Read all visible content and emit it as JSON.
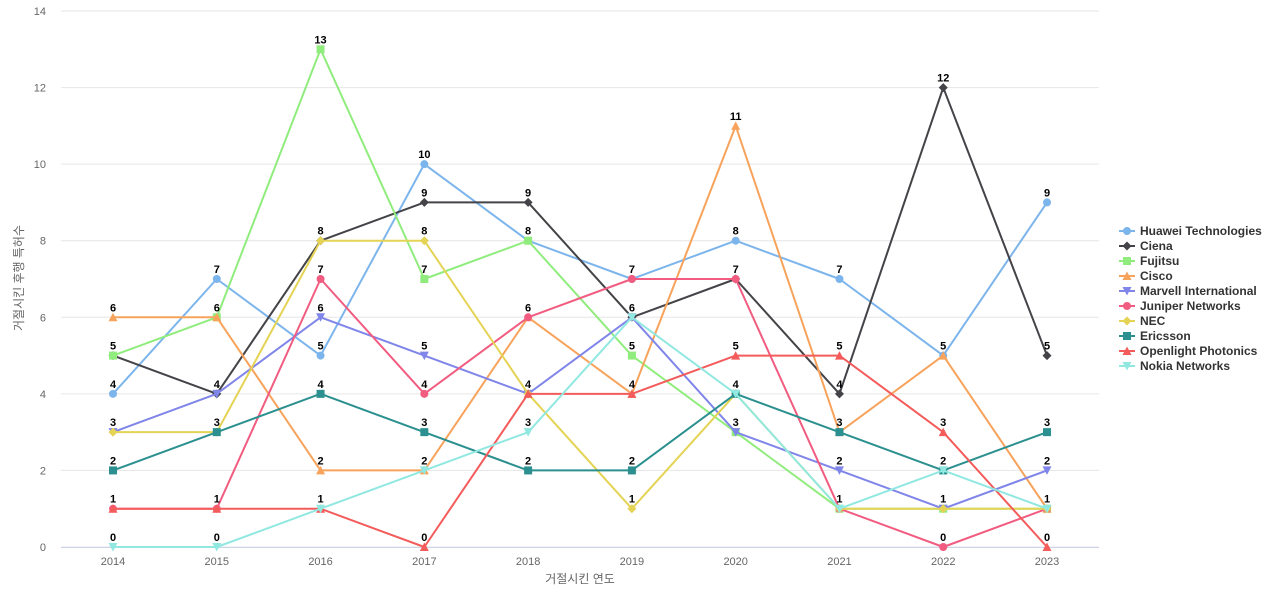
{
  "chart_data": {
    "type": "line",
    "title": "",
    "xlabel": "거절시킨 연도",
    "ylabel": "거절시킨 후행 특허수",
    "ylim": [
      0,
      14
    ],
    "yticks": [
      0,
      2,
      4,
      6,
      8,
      10,
      12,
      14
    ],
    "grid": true,
    "legend_position": "right",
    "categories": [
      "2014",
      "2015",
      "2016",
      "2017",
      "2018",
      "2019",
      "2020",
      "2021",
      "2022",
      "2023"
    ],
    "series": [
      {
        "name": "Huawei Technologies",
        "color": "#7cb5ec",
        "marker": "circle",
        "values": [
          4,
          7,
          5,
          10,
          8,
          7,
          8,
          7,
          5,
          9
        ]
      },
      {
        "name": "Ciena",
        "color": "#434348",
        "marker": "diamond",
        "values": [
          5,
          4,
          8,
          9,
          9,
          6,
          7,
          4,
          12,
          5
        ]
      },
      {
        "name": "Fujitsu",
        "color": "#90ed7d",
        "marker": "square",
        "values": [
          5,
          6,
          13,
          7,
          8,
          5,
          3,
          1,
          1,
          1
        ]
      },
      {
        "name": "Cisco",
        "color": "#f7a35c",
        "marker": "triangle",
        "values": [
          6,
          6,
          2,
          2,
          6,
          4,
          11,
          3,
          5,
          1
        ]
      },
      {
        "name": "Marvell International",
        "color": "#8085e9",
        "marker": "triangle-down",
        "values": [
          3,
          4,
          6,
          5,
          4,
          6,
          3,
          2,
          1,
          2
        ]
      },
      {
        "name": "Juniper Networks",
        "color": "#f15c80",
        "marker": "circle",
        "values": [
          1,
          1,
          7,
          4,
          6,
          7,
          7,
          1,
          0,
          1
        ]
      },
      {
        "name": "NEC",
        "color": "#e4d354",
        "marker": "diamond",
        "values": [
          3,
          3,
          8,
          8,
          4,
          1,
          4,
          1,
          1,
          1
        ]
      },
      {
        "name": "Ericsson",
        "color": "#2b908f",
        "marker": "square",
        "values": [
          2,
          3,
          4,
          3,
          2,
          2,
          4,
          3,
          2,
          3
        ]
      },
      {
        "name": "Openlight Photonics",
        "color": "#f45b5b",
        "marker": "triangle",
        "values": [
          1,
          1,
          1,
          0,
          4,
          4,
          5,
          5,
          3,
          0
        ]
      },
      {
        "name": "Nokia Networks",
        "color": "#91e8e1",
        "marker": "triangle-down",
        "values": [
          0,
          0,
          1,
          2,
          3,
          6,
          4,
          1,
          2,
          1
        ]
      }
    ],
    "data_labels": [
      {
        "x": "2014",
        "y": 6,
        "text": "6"
      },
      {
        "x": "2014",
        "y": 5,
        "text": "5"
      },
      {
        "x": "2014",
        "y": 4,
        "text": "4"
      },
      {
        "x": "2014",
        "y": 3,
        "text": "3"
      },
      {
        "x": "2014",
        "y": 2,
        "text": "2"
      },
      {
        "x": "2014",
        "y": 1,
        "text": "1"
      },
      {
        "x": "2014",
        "y": 0,
        "text": "0"
      },
      {
        "x": "2015",
        "y": 7,
        "text": "7"
      },
      {
        "x": "2015",
        "y": 6,
        "text": "6"
      },
      {
        "x": "2015",
        "y": 4,
        "text": "4"
      },
      {
        "x": "2015",
        "y": 3,
        "text": "3"
      },
      {
        "x": "2015",
        "y": 1,
        "text": "1"
      },
      {
        "x": "2015",
        "y": 0,
        "text": "0"
      },
      {
        "x": "2016",
        "y": 13,
        "text": "13"
      },
      {
        "x": "2016",
        "y": 8,
        "text": "8"
      },
      {
        "x": "2016",
        "y": 7,
        "text": "7"
      },
      {
        "x": "2016",
        "y": 6,
        "text": "6"
      },
      {
        "x": "2016",
        "y": 5,
        "text": "5"
      },
      {
        "x": "2016",
        "y": 4,
        "text": "4"
      },
      {
        "x": "2016",
        "y": 2,
        "text": "2"
      },
      {
        "x": "2016",
        "y": 1,
        "text": "1"
      },
      {
        "x": "2017",
        "y": 10,
        "text": "10"
      },
      {
        "x": "2017",
        "y": 9,
        "text": "9"
      },
      {
        "x": "2017",
        "y": 8,
        "text": "8"
      },
      {
        "x": "2017",
        "y": 7,
        "text": "7"
      },
      {
        "x": "2017",
        "y": 5,
        "text": "5"
      },
      {
        "x": "2017",
        "y": 4,
        "text": "4"
      },
      {
        "x": "2017",
        "y": 3,
        "text": "3"
      },
      {
        "x": "2017",
        "y": 2,
        "text": "2"
      },
      {
        "x": "2017",
        "y": 0,
        "text": "0"
      },
      {
        "x": "2018",
        "y": 9,
        "text": "9"
      },
      {
        "x": "2018",
        "y": 8,
        "text": "8"
      },
      {
        "x": "2018",
        "y": 6,
        "text": "6"
      },
      {
        "x": "2018",
        "y": 4,
        "text": "4"
      },
      {
        "x": "2018",
        "y": 3,
        "text": "3"
      },
      {
        "x": "2018",
        "y": 2,
        "text": "2"
      },
      {
        "x": "2019",
        "y": 7,
        "text": "7"
      },
      {
        "x": "2019",
        "y": 6,
        "text": "6"
      },
      {
        "x": "2019",
        "y": 5,
        "text": "5"
      },
      {
        "x": "2019",
        "y": 4,
        "text": "4"
      },
      {
        "x": "2019",
        "y": 2,
        "text": "2"
      },
      {
        "x": "2019",
        "y": 1,
        "text": "1"
      },
      {
        "x": "2020",
        "y": 11,
        "text": "11"
      },
      {
        "x": "2020",
        "y": 8,
        "text": "8"
      },
      {
        "x": "2020",
        "y": 7,
        "text": "7"
      },
      {
        "x": "2020",
        "y": 5,
        "text": "5"
      },
      {
        "x": "2020",
        "y": 4,
        "text": "4"
      },
      {
        "x": "2020",
        "y": 3,
        "text": "3"
      },
      {
        "x": "2021",
        "y": 7,
        "text": "7"
      },
      {
        "x": "2021",
        "y": 5,
        "text": "5"
      },
      {
        "x": "2021",
        "y": 4,
        "text": "4"
      },
      {
        "x": "2021",
        "y": 3,
        "text": "3"
      },
      {
        "x": "2021",
        "y": 2,
        "text": "2"
      },
      {
        "x": "2021",
        "y": 1,
        "text": "1"
      },
      {
        "x": "2022",
        "y": 12,
        "text": "12"
      },
      {
        "x": "2022",
        "y": 5,
        "text": "5"
      },
      {
        "x": "2022",
        "y": 3,
        "text": "3"
      },
      {
        "x": "2022",
        "y": 2,
        "text": "2"
      },
      {
        "x": "2022",
        "y": 1,
        "text": "1"
      },
      {
        "x": "2022",
        "y": 0,
        "text": "0"
      },
      {
        "x": "2023",
        "y": 9,
        "text": "9"
      },
      {
        "x": "2023",
        "y": 5,
        "text": "5"
      },
      {
        "x": "2023",
        "y": 3,
        "text": "3"
      },
      {
        "x": "2023",
        "y": 2,
        "text": "2"
      },
      {
        "x": "2023",
        "y": 1,
        "text": "1"
      },
      {
        "x": "2023",
        "y": 0,
        "text": "0"
      }
    ]
  }
}
